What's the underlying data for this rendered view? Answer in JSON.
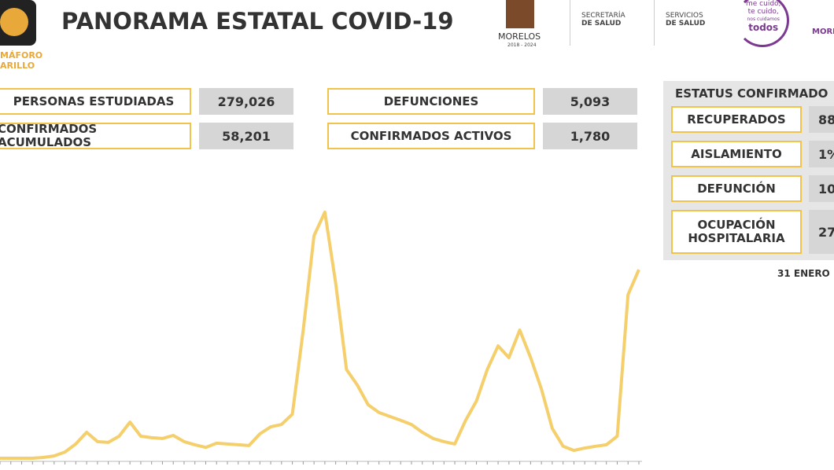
{
  "header": {
    "semaforo": [
      "MÁFORO",
      "ARILLO"
    ],
    "title": "PANORAMA ESTATAL COVID-19",
    "logos": {
      "state": "MORELOS",
      "period": "2018 - 2024",
      "sec": [
        "SECRETARÍA",
        "DE SALUD"
      ],
      "serv": [
        "SERVICIOS",
        "DE SALUD"
      ],
      "slogan": [
        "me cuido,",
        "te cuido,",
        "nos cuidamos",
        "todos"
      ],
      "right": "MORE"
    }
  },
  "indicators": [
    {
      "label": "PERSONAS ESTUDIADAS",
      "value": "279,026"
    },
    {
      "label": "CONFIRMADOS ACUMULADOS",
      "value": "58,201"
    },
    {
      "label": "DEFUNCIONES",
      "value": "5,093"
    },
    {
      "label": "CONFIRMADOS ACTIVOS",
      "value": "1,780"
    }
  ],
  "status": {
    "title": "ESTATUS CONFIRMADO",
    "rows": [
      {
        "label": [
          "RECUPERADOS"
        ],
        "value": "88"
      },
      {
        "label": [
          "AISLAMIENTO"
        ],
        "value": "1%"
      },
      {
        "label": [
          "DEFUNCIÓN"
        ],
        "value": "10"
      },
      {
        "label": [
          "OCUPACIÓN",
          "HOSPITALARIA"
        ],
        "value": "27"
      }
    ],
    "date": "31 ENERO"
  },
  "chart_data": {
    "type": "line",
    "color": "#f4cf6b",
    "ylim": [
      0,
      1000
    ],
    "values": [
      6,
      6,
      6,
      6,
      9,
      15,
      30,
      61,
      106,
      70,
      67,
      91,
      145,
      91,
      85,
      82,
      94,
      70,
      58,
      48,
      64,
      61,
      58,
      55,
      100,
      127,
      136,
      176,
      500,
      864,
      955,
      682,
      348,
      288,
      212,
      182,
      167,
      152,
      136,
      106,
      82,
      70,
      61,
      152,
      227,
      348,
      439,
      394,
      500,
      394,
      273,
      121,
      52,
      36,
      45,
      52,
      58,
      91,
      636,
      733
    ]
  }
}
